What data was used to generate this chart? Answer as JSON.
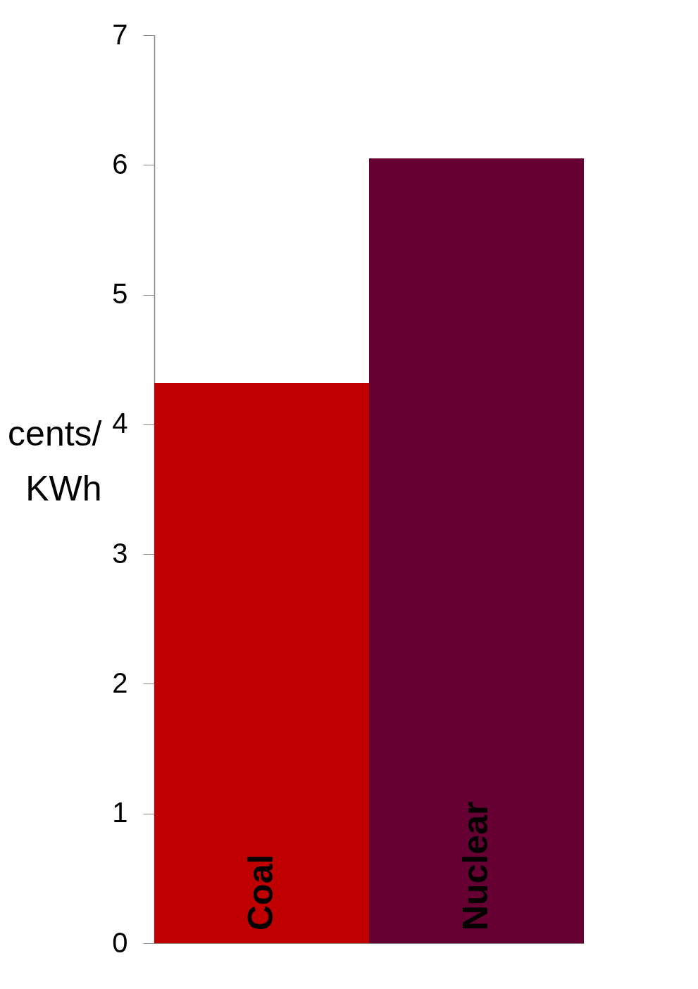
{
  "chart_data": {
    "type": "bar",
    "ylabel": "cents/ KWh",
    "categories": [
      "Coal",
      "Nuclear"
    ],
    "values": [
      4.32,
      6.05
    ],
    "colors": [
      "#c00000",
      "#660033"
    ],
    "ylim": [
      0,
      7
    ],
    "yticks": [
      0,
      1,
      2,
      3,
      4,
      5,
      6,
      7
    ],
    "grid": false,
    "legend": false
  }
}
